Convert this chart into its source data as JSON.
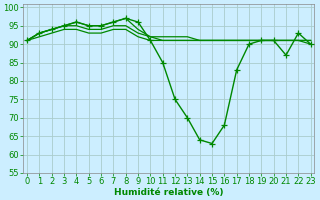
{
  "xlabel": "Humidité relative (%)",
  "background_color": "#cceeff",
  "grid_color": "#aacccc",
  "line_color": "#008800",
  "ylim": [
    55,
    101
  ],
  "xlim": [
    -0.3,
    23.3
  ],
  "yticks": [
    55,
    60,
    65,
    70,
    75,
    80,
    85,
    90,
    95,
    100
  ],
  "xticks": [
    0,
    1,
    2,
    3,
    4,
    5,
    6,
    7,
    8,
    9,
    10,
    11,
    12,
    13,
    14,
    15,
    16,
    17,
    18,
    19,
    20,
    21,
    22,
    23
  ],
  "series": [
    [
      91,
      93,
      94,
      95,
      96,
      95,
      95,
      96,
      97,
      96,
      91,
      85,
      75,
      70,
      64,
      63,
      68,
      83,
      90,
      91,
      91,
      87,
      93,
      90
    ],
    [
      91,
      93,
      94,
      95,
      96,
      95,
      95,
      96,
      97,
      94,
      92,
      91,
      91,
      91,
      91,
      91,
      91,
      91,
      91,
      91,
      91,
      91,
      91,
      91
    ],
    [
      91,
      93,
      94,
      95,
      95,
      94,
      94,
      95,
      95,
      93,
      92,
      92,
      92,
      92,
      91,
      91,
      91,
      91,
      91,
      91,
      91,
      91,
      91,
      91
    ],
    [
      91,
      92,
      93,
      94,
      94,
      93,
      93,
      94,
      94,
      92,
      91,
      91,
      91,
      91,
      91,
      91,
      91,
      91,
      91,
      91,
      91,
      91,
      91,
      90
    ]
  ],
  "series_with_markers": [
    0
  ],
  "xlabel_fontsize": 6.5,
  "xlabel_bold": true,
  "tick_fontsize": 6,
  "linewidth_main": 1.0,
  "linewidth_other": 0.9,
  "marker": "+",
  "markersize": 4
}
